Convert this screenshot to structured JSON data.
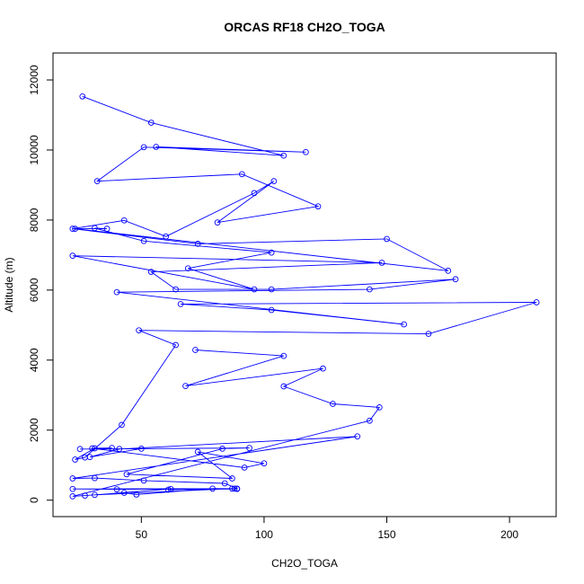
{
  "chart_data": {
    "type": "line",
    "title": "ORCAS RF18 CH2O_TOGA",
    "xlabel": "CH2O_TOGA",
    "ylabel": "Altitude (m)",
    "xlim": [
      14.0,
      219.0
    ],
    "ylim": [
      -470,
      12770
    ],
    "x_ticks": [
      50,
      100,
      150,
      200
    ],
    "y_ticks": [
      0,
      2000,
      4000,
      6000,
      8000,
      10000,
      12000
    ],
    "grid": false,
    "legend": "none",
    "series_color": "#0000ff",
    "points": [
      [
        26,
        11530
      ],
      [
        54,
        10780
      ],
      [
        108,
        9840
      ],
      [
        56,
        10090
      ],
      [
        117,
        9940
      ],
      [
        51,
        10080
      ],
      [
        32,
        9110
      ],
      [
        91,
        9310
      ],
      [
        122,
        8390
      ],
      [
        81,
        7930
      ],
      [
        104,
        9110
      ],
      [
        96,
        8770
      ],
      [
        60,
        7530
      ],
      [
        43,
        7990
      ],
      [
        22,
        7750
      ],
      [
        73,
        7320
      ],
      [
        150,
        7460
      ],
      [
        175,
        6550
      ],
      [
        23,
        7750
      ],
      [
        36,
        7750
      ],
      [
        31,
        7770
      ],
      [
        51,
        7400
      ],
      [
        103,
        7070
      ],
      [
        69,
        6620
      ],
      [
        96,
        6020
      ],
      [
        22,
        6980
      ],
      [
        148,
        6780
      ],
      [
        54,
        6520
      ],
      [
        64,
        6020
      ],
      [
        103,
        6020
      ],
      [
        178,
        6310
      ],
      [
        143,
        6020
      ],
      [
        40,
        5940
      ],
      [
        157,
        5020
      ],
      [
        103,
        5430
      ],
      [
        66,
        5600
      ],
      [
        211,
        5650
      ],
      [
        167,
        4750
      ],
      [
        49,
        4850
      ],
      [
        64,
        4430
      ],
      [
        42,
        2150
      ],
      [
        27,
        1220
      ],
      [
        23,
        1160
      ],
      [
        31,
        1480
      ],
      [
        38,
        1490
      ],
      [
        30,
        1480
      ],
      [
        92,
        930
      ],
      [
        100,
        1050
      ],
      [
        73,
        1380
      ],
      [
        87,
        620
      ],
      [
        44,
        740
      ],
      [
        83,
        1470
      ],
      [
        94,
        1490
      ],
      [
        25,
        1460
      ],
      [
        50,
        1470
      ],
      [
        29,
        1230
      ],
      [
        41,
        1460
      ],
      [
        138,
        1820
      ],
      [
        22,
        620
      ],
      [
        31,
        630
      ],
      [
        51,
        560
      ],
      [
        84,
        480
      ],
      [
        89,
        330
      ],
      [
        22,
        320
      ],
      [
        40,
        310
      ],
      [
        89,
        320
      ],
      [
        61,
        300
      ],
      [
        62,
        320
      ],
      [
        31,
        150
      ],
      [
        87,
        330
      ],
      [
        88,
        330
      ],
      [
        79,
        330
      ],
      [
        48,
        160
      ],
      [
        43,
        210
      ],
      [
        27,
        130
      ],
      [
        22,
        110
      ],
      [
        143,
        2270
      ],
      [
        147,
        2650
      ],
      [
        128,
        2750
      ],
      [
        108,
        3250
      ],
      [
        124,
        3760
      ],
      [
        68,
        3260
      ],
      [
        108,
        4120
      ],
      [
        72,
        4290
      ]
    ]
  }
}
